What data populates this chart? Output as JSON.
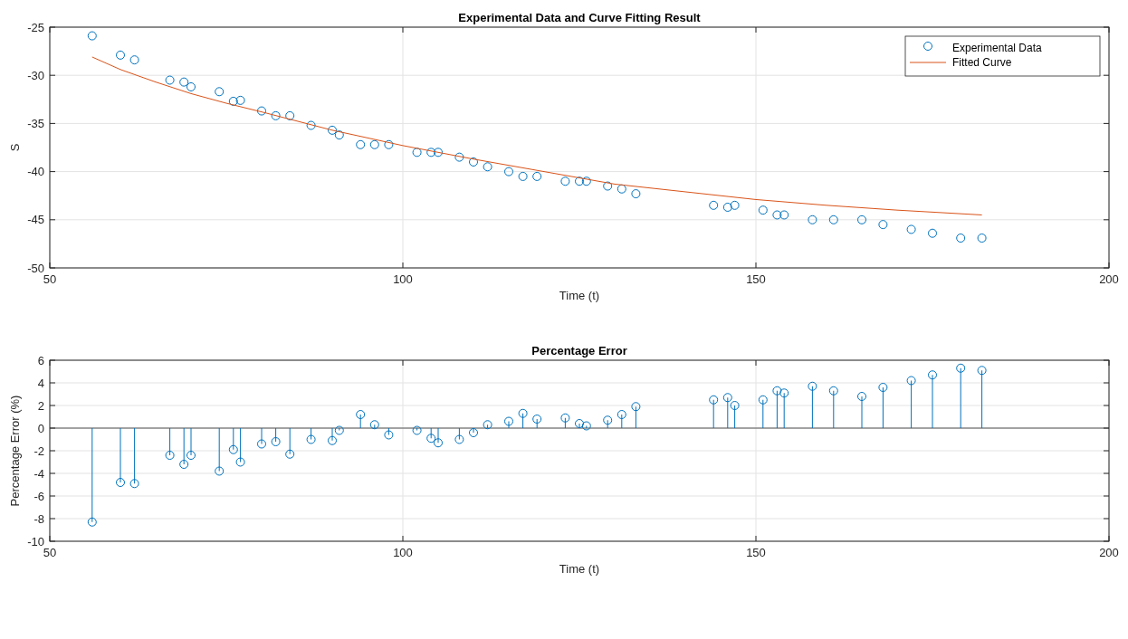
{
  "chart_data": [
    {
      "type": "scatter",
      "title": "Experimental Data and Curve Fitting Result",
      "xlabel": "Time (t)",
      "ylabel": "S",
      "x": [
        56,
        60,
        62,
        67,
        69,
        70,
        74,
        76,
        77,
        80,
        82,
        84,
        87,
        90,
        91,
        94,
        96,
        98,
        102,
        104,
        105,
        108,
        110,
        112,
        115,
        117,
        119,
        123,
        125,
        126,
        129,
        131,
        133,
        144,
        146,
        147,
        151,
        153,
        154,
        158,
        161,
        165,
        168,
        172,
        175,
        179,
        182
      ],
      "series": [
        {
          "name": "Experimental Data",
          "color": "#0072bd",
          "marker": "circle",
          "values": [
            -25.9,
            -27.9,
            -28.4,
            -30.5,
            -30.7,
            -31.2,
            -31.7,
            -32.7,
            -32.6,
            -33.7,
            -34.2,
            -34.2,
            -35.2,
            -35.7,
            -36.2,
            -37.2,
            -37.2,
            -37.2,
            -38.0,
            -38.0,
            -38.0,
            -38.5,
            -39.0,
            -39.5,
            -40.0,
            -40.5,
            -40.5,
            -41.0,
            -41.0,
            -41.0,
            -41.5,
            -41.8,
            -42.3,
            -43.5,
            -43.7,
            -43.5,
            -44.0,
            -44.5,
            -44.5,
            -45.0,
            -45.0,
            -45.0,
            -45.5,
            -46.0,
            -46.4,
            -46.9,
            -46.9
          ]
        },
        {
          "name": "Fitted Curve",
          "type": "line",
          "color": "#d95319",
          "marker": "none",
          "line_style": "solid",
          "x": [
            56,
            60,
            65,
            70,
            75,
            80,
            90,
            100,
            110,
            120,
            130,
            140,
            150,
            160,
            170,
            182
          ],
          "values": [
            -28.1,
            -29.4,
            -30.7,
            -31.9,
            -32.9,
            -33.8,
            -35.7,
            -37.3,
            -38.7,
            -40.0,
            -41.3,
            -42.1,
            -42.9,
            -43.5,
            -44.0,
            -44.5
          ]
        }
      ],
      "xlim": [
        50,
        200
      ],
      "xticks": [
        50,
        100,
        150,
        200
      ],
      "ylim": [
        -50,
        -25
      ],
      "yticks": [
        -50,
        -45,
        -40,
        -35,
        -30,
        -25
      ],
      "grid": true,
      "legend": "top right"
    },
    {
      "type": "lollipop",
      "title": "Percentage Error",
      "xlabel": "Time (t)",
      "ylabel": "Percentage Error (%)",
      "x": [
        56,
        60,
        62,
        67,
        69,
        70,
        74,
        76,
        77,
        80,
        82,
        84,
        87,
        90,
        91,
        94,
        96,
        98,
        102,
        104,
        105,
        108,
        110,
        112,
        115,
        117,
        119,
        123,
        125,
        126,
        129,
        131,
        133,
        144,
        146,
        147,
        151,
        153,
        154,
        158,
        161,
        165,
        168,
        172,
        175,
        179,
        182
      ],
      "series": [
        {
          "color": "#0072bd",
          "values": [
            -8.3,
            -4.8,
            -4.9,
            -2.4,
            -3.2,
            -2.4,
            -3.8,
            -1.9,
            -3.0,
            -1.4,
            -1.2,
            -2.3,
            -1.0,
            -1.1,
            -0.2,
            1.2,
            0.3,
            -0.6,
            -0.2,
            -0.9,
            -1.3,
            -1.0,
            -0.4,
            0.3,
            0.6,
            1.3,
            0.8,
            0.9,
            0.4,
            0.2,
            0.7,
            1.2,
            1.9,
            2.5,
            2.7,
            2.0,
            2.5,
            3.3,
            3.1,
            3.7,
            3.3,
            2.8,
            3.6,
            4.2,
            4.7,
            5.3,
            5.1
          ]
        }
      ],
      "xlim": [
        50,
        200
      ],
      "xticks": [
        50,
        100,
        150,
        200
      ],
      "ylim": [
        -10,
        6
      ],
      "yticks": [
        -10,
        -8,
        -6,
        -4,
        -2,
        0,
        2,
        4,
        6
      ],
      "grid": true,
      "marker": "circle"
    }
  ]
}
